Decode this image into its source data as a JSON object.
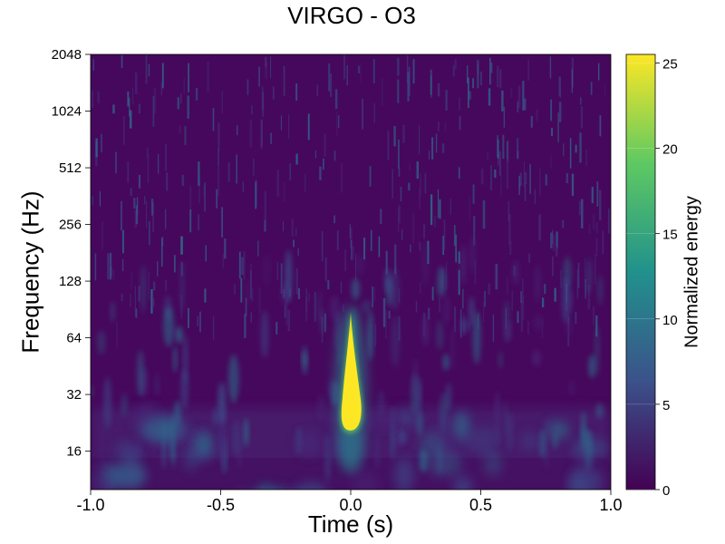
{
  "chart_data": {
    "type": "heatmap",
    "title": "VIRGO - O3",
    "xlabel": "Time (s)",
    "ylabel": "Frequency (Hz)",
    "colorbar_label": "Normalized energy",
    "colormap": "viridis",
    "xlim": [
      -1.0,
      1.0
    ],
    "ylim": [
      10,
      2048
    ],
    "y_scale": "log2",
    "x_ticks": [
      -1.0,
      -0.5,
      0.0,
      0.5,
      1.0
    ],
    "x_tick_labels": [
      "-1.0",
      "-0.5",
      "0.0",
      "0.5",
      "1.0"
    ],
    "y_ticks": [
      16,
      32,
      64,
      128,
      256,
      512,
      1024,
      2048
    ],
    "y_tick_labels": [
      "16",
      "32",
      "64",
      "128",
      "256",
      "512",
      "1024",
      "2048"
    ],
    "colorbar_range": [
      0,
      25.5
    ],
    "colorbar_ticks": [
      0,
      5,
      10,
      15,
      20,
      25
    ],
    "colorbar_tick_labels": [
      "0",
      "5",
      "10",
      "15",
      "20",
      "25"
    ],
    "grid": false,
    "features": [
      {
        "t": 0.0,
        "f_low": 20,
        "f_high": 90,
        "peak_f": 28,
        "energy": 25.5
      },
      {
        "t": -0.45,
        "f_low": 30,
        "f_high": 50,
        "energy": 6
      },
      {
        "t": -0.7,
        "f_low": 60,
        "f_high": 90,
        "energy": 4
      }
    ],
    "background_energy": [
      0,
      4
    ]
  }
}
